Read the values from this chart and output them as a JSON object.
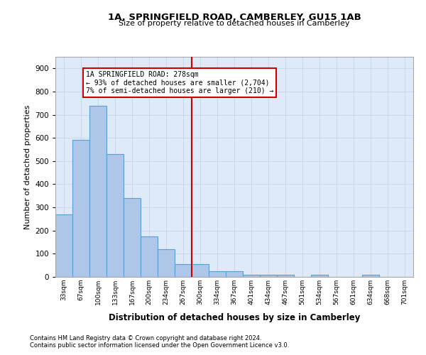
{
  "title": "1A, SPRINGFIELD ROAD, CAMBERLEY, GU15 1AB",
  "subtitle": "Size of property relative to detached houses in Camberley",
  "xlabel": "Distribution of detached houses by size in Camberley",
  "ylabel": "Number of detached properties",
  "footnote1": "Contains HM Land Registry data © Crown copyright and database right 2024.",
  "footnote2": "Contains public sector information licensed under the Open Government Licence v3.0.",
  "bin_labels": [
    "33sqm",
    "67sqm",
    "100sqm",
    "133sqm",
    "167sqm",
    "200sqm",
    "234sqm",
    "267sqm",
    "300sqm",
    "334sqm",
    "367sqm",
    "401sqm",
    "434sqm",
    "467sqm",
    "501sqm",
    "534sqm",
    "567sqm",
    "601sqm",
    "634sqm",
    "668sqm",
    "701sqm"
  ],
  "bar_heights": [
    270,
    590,
    740,
    530,
    340,
    175,
    120,
    55,
    55,
    25,
    25,
    10,
    10,
    10,
    0,
    10,
    0,
    0,
    10,
    0,
    0
  ],
  "bar_color": "#aec6e8",
  "bar_edge_color": "#5a9fd4",
  "grid_color": "#c8d8e8",
  "background_color": "#deeaf7",
  "property_line_x": 7.5,
  "property_line_color": "#cc0000",
  "annotation_text": "1A SPRINGFIELD ROAD: 278sqm\n← 93% of detached houses are smaller (2,704)\n7% of semi-detached houses are larger (210) →",
  "annotation_box_color": "#ffffff",
  "annotation_box_edge_color": "#cc0000",
  "ylim": [
    0,
    950
  ],
  "yticks": [
    0,
    100,
    200,
    300,
    400,
    500,
    600,
    700,
    800,
    900
  ]
}
